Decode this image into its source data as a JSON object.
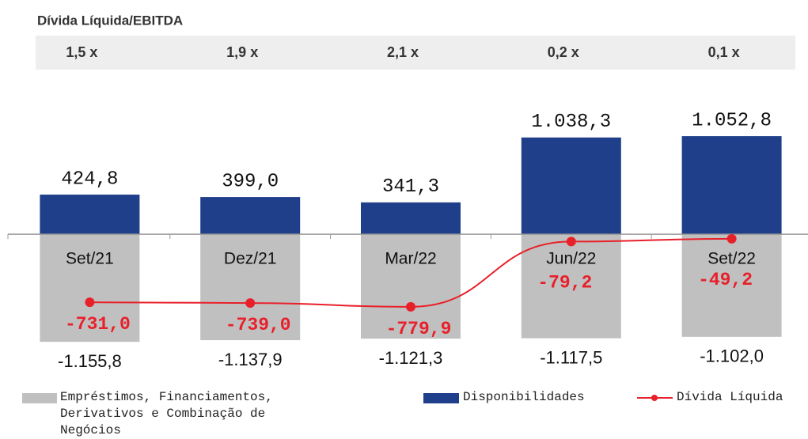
{
  "chart_data": {
    "type": "bar",
    "title": "Dívida Líquida/EBITDA",
    "ratio": {
      "values": [
        1.5,
        1.9,
        2.1,
        0.2,
        0.1
      ],
      "value_labels": [
        "1,5 x",
        "1,9 x",
        "2,1 x",
        "0,2 x",
        "0,1 x"
      ]
    },
    "categories": [
      "Set/21",
      "Dez/21",
      "Mar/22",
      "Jun/22",
      "Set/22"
    ],
    "ylim": [
      -1500,
      1750
    ],
    "series": [
      {
        "name": "Empréstimos, Financiamentos, Derivativos e Combinação de Negócios",
        "color": "#c0c0c0",
        "values": [
          -1155.8,
          -1137.9,
          -1121.3,
          -1117.5,
          -1102.0
        ],
        "value_labels": [
          "-1.155,8",
          "-1.137,9",
          "-1.121,3",
          "-1.117,5",
          "-1.102,0"
        ]
      },
      {
        "name": "Disponibilidades",
        "color": "#1f3f8a",
        "values": [
          424.8,
          399.0,
          341.3,
          1038.3,
          1052.8
        ],
        "value_labels": [
          "424,8",
          "399,0",
          "341,3",
          "1.038,3",
          "1.052,8"
        ]
      },
      {
        "name": "Dívida Líquida",
        "color": "#e8202a",
        "type": "line",
        "values": [
          -731.0,
          -739.0,
          -779.9,
          -79.2,
          -49.2
        ],
        "value_labels": [
          "-731,0",
          "-739,0",
          "-779,9",
          "-79,2",
          "-49,2"
        ]
      }
    ]
  }
}
